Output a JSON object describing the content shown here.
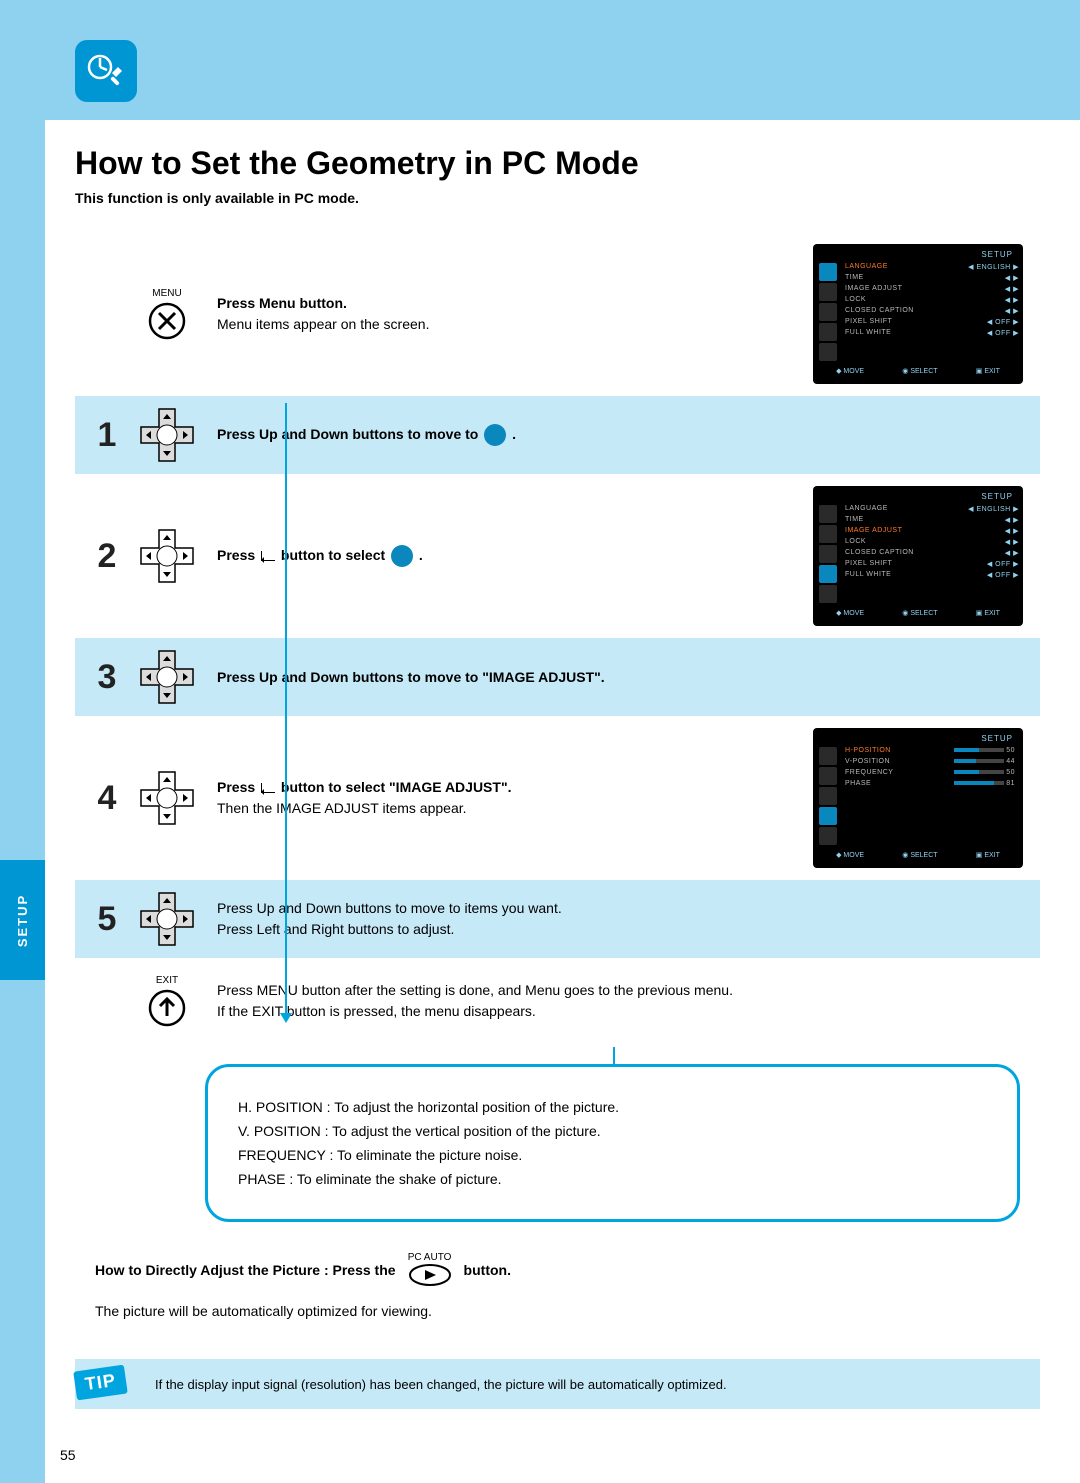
{
  "page": {
    "title": "How to Set the Geometry in PC Mode",
    "subtitle": "This function is only available in PC mode.",
    "side_tab": "SETUP",
    "page_number": "55",
    "tip_label": "TIP",
    "tip_text": "If the display input signal (resolution) has been changed, the picture will be automatically optimized.",
    "colors": {
      "band": "#8fd2ef",
      "accent": "#0095d3",
      "step_band": "#c6e9f7",
      "info_border": "#00a5e0",
      "osd_bg": "#000000",
      "osd_highlight": "#ff7a2a"
    }
  },
  "steps": {
    "menu": {
      "icon_label": "MENU",
      "bold": "Press Menu button.",
      "text": "Menu items appear on the screen."
    },
    "s1": {
      "num": "1",
      "bold": "Press Up and Down buttons to move to ",
      "tail": " ."
    },
    "s2": {
      "num": "2",
      "bold_a": "Press ",
      "bold_b": " button to select ",
      "tail": " ."
    },
    "s3": {
      "num": "3",
      "bold": "Press Up and Down buttons to move to \"IMAGE ADJUST\"."
    },
    "s4": {
      "num": "4",
      "bold_a": "Press ",
      "bold_b": " button to select \"IMAGE ADJUST\".",
      "text": "Then the IMAGE ADJUST items appear."
    },
    "s5": {
      "num": "5",
      "text1": "Press Up and Down buttons to move to items you want.",
      "text2": "Press Left and Right buttons to adjust."
    },
    "exit": {
      "icon_label": "EXIT",
      "text1": "Press MENU button after the setting is done, and Menu goes to the previous menu.",
      "text2": "If the EXIT button is pressed, the menu disappears."
    }
  },
  "info": {
    "l1": "H. POSITION : To adjust the horizontal position of the picture.",
    "l2": "V. POSITION : To adjust the vertical position of the picture.",
    "l3": "FREQUENCY : To eliminate the picture noise.",
    "l4": "PHASE : To eliminate the shake of picture."
  },
  "direct": {
    "bold_a": "How to Directly Adjust the Picture : Press the",
    "pc_auto": "PC AUTO",
    "bold_b": "button.",
    "text": "The picture will be automatically optimized for viewing."
  },
  "osd": {
    "title": "SETUP",
    "footer": {
      "move": "MOVE",
      "select": "SELECT",
      "exit": "EXIT"
    },
    "menu1": {
      "items": [
        {
          "label": "LANGUAGE",
          "value": "ENGLISH",
          "arrows": "◀ ▶"
        },
        {
          "label": "TIME",
          "value": "",
          "arrows": "◀ ▶"
        },
        {
          "label": "IMAGE ADJUST",
          "value": "",
          "arrows": "◀ ▶"
        },
        {
          "label": "LOCK",
          "value": "",
          "arrows": "◀ ▶"
        },
        {
          "label": "CLOSED CAPTION",
          "value": "",
          "arrows": "◀ ▶"
        },
        {
          "label": "PIXEL SHIFT",
          "value": "OFF",
          "arrows": "◀ ▶"
        },
        {
          "label": "FULL WHITE",
          "value": "OFF",
          "arrows": "◀ ▶"
        }
      ]
    },
    "menu2_hl_index": 2,
    "menu3": {
      "items": [
        {
          "label": "H-POSITION",
          "value": "50"
        },
        {
          "label": "V-POSITION",
          "value": "44"
        },
        {
          "label": "FREQUENCY",
          "value": "50"
        },
        {
          "label": "PHASE",
          "value": "81"
        }
      ]
    }
  }
}
